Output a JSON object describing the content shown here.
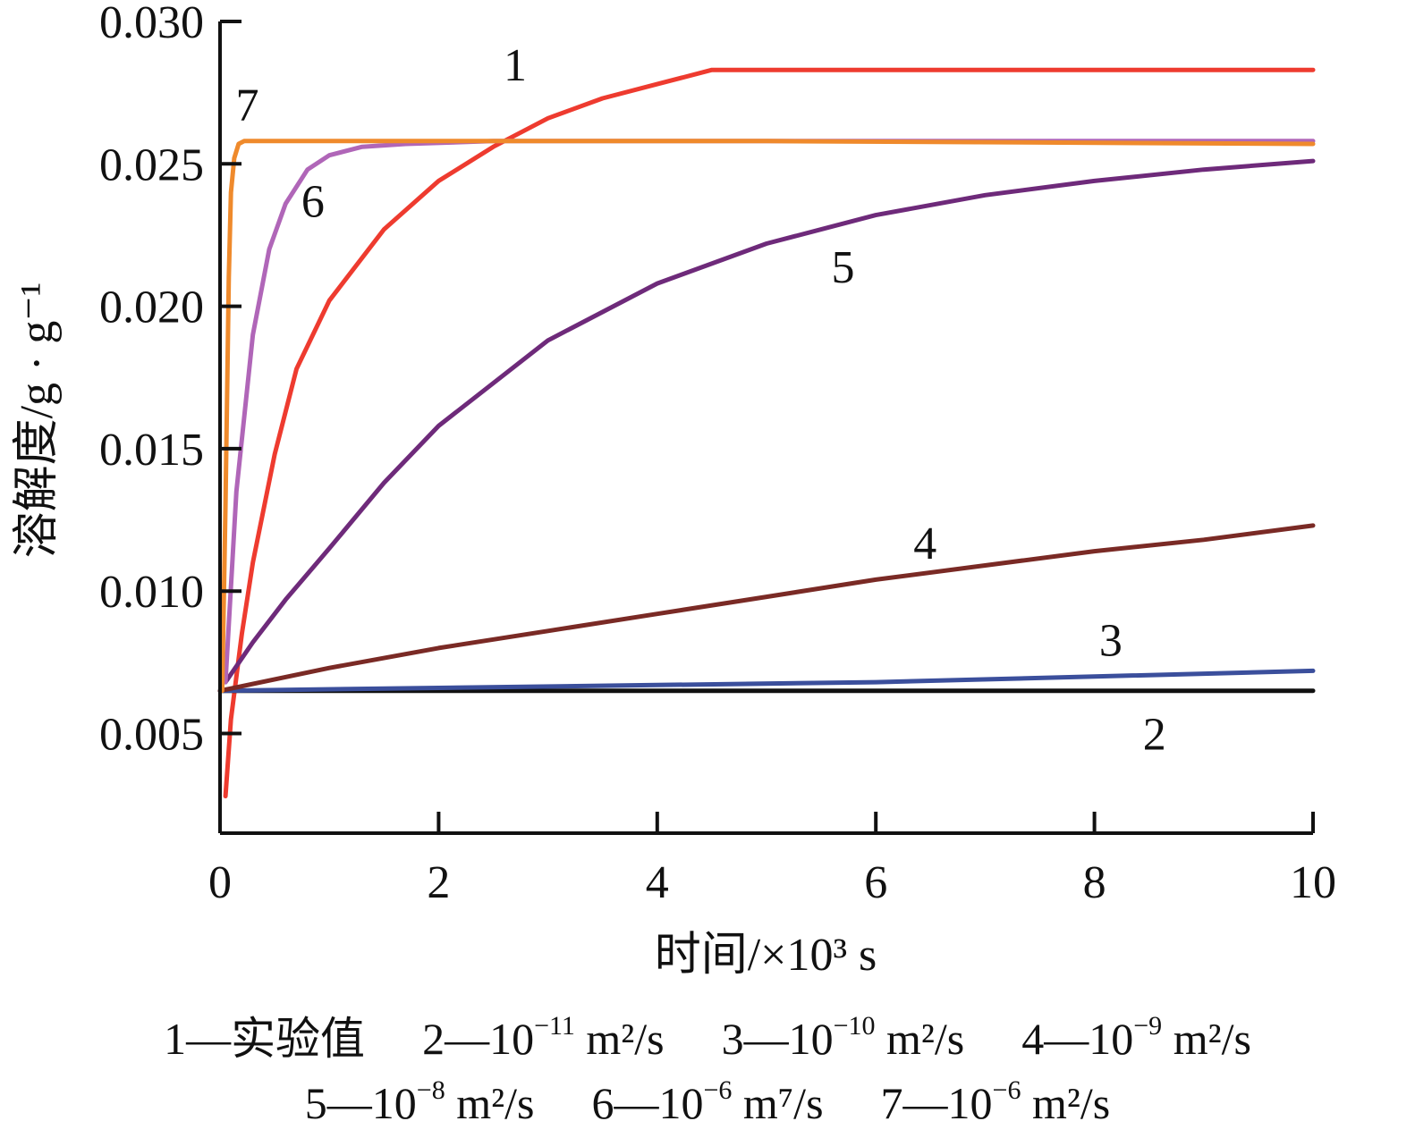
{
  "chart_data": {
    "type": "line",
    "xlabel": "时间/×10³ s",
    "ylabel": "溶解度/g · g⁻¹",
    "xlim": [
      0,
      10
    ],
    "ylim": [
      0.0015,
      0.03
    ],
    "xticks": [
      "0",
      "2",
      "4",
      "6",
      "8",
      "10"
    ],
    "yticks": [
      "0.005",
      "0.010",
      "0.015",
      "0.020",
      "0.025",
      "0.030"
    ],
    "grid": false,
    "legend_position": "bottom",
    "series": [
      {
        "label": "1",
        "color": "#ee3b2f",
        "x": [
          0.05,
          0.1,
          0.2,
          0.3,
          0.5,
          0.7,
          1.0,
          1.5,
          2.0,
          2.5,
          3.0,
          3.5,
          4.0,
          4.5,
          6.0,
          8.0,
          10.0
        ],
        "y": [
          0.0028,
          0.0055,
          0.0085,
          0.011,
          0.0148,
          0.0178,
          0.0202,
          0.0227,
          0.0244,
          0.0256,
          0.0266,
          0.0273,
          0.0278,
          0.0283,
          0.0283,
          0.0283,
          0.0283
        ]
      },
      {
        "label": "2",
        "color": "#111111",
        "x": [
          0,
          2,
          4,
          6,
          8,
          10
        ],
        "y": [
          0.0065,
          0.0065,
          0.0065,
          0.0065,
          0.0065,
          0.0065
        ]
      },
      {
        "label": "3",
        "color": "#3b4f9c",
        "x": [
          0,
          2,
          4,
          6,
          8,
          10
        ],
        "y": [
          0.0065,
          0.0066,
          0.0067,
          0.0068,
          0.007,
          0.0072
        ]
      },
      {
        "label": "4",
        "color": "#7a2a25",
        "x": [
          0,
          1,
          2,
          3,
          4,
          5,
          6,
          7,
          8,
          9,
          10
        ],
        "y": [
          0.0065,
          0.0073,
          0.008,
          0.0086,
          0.0092,
          0.0098,
          0.0104,
          0.0109,
          0.0114,
          0.0118,
          0.0123
        ]
      },
      {
        "label": "5",
        "color": "#6e2a7a",
        "x": [
          0.05,
          0.3,
          0.6,
          1.0,
          1.5,
          2.0,
          3.0,
          4.0,
          5.0,
          6.0,
          7.0,
          8.0,
          9.0,
          10.0
        ],
        "y": [
          0.0068,
          0.0082,
          0.0097,
          0.0115,
          0.0138,
          0.0158,
          0.0188,
          0.0208,
          0.0222,
          0.0232,
          0.0239,
          0.0244,
          0.0248,
          0.0251
        ]
      },
      {
        "label": "6",
        "color": "#b066b8",
        "x": [
          0.05,
          0.15,
          0.3,
          0.45,
          0.6,
          0.8,
          1.0,
          1.3,
          1.7,
          2.5,
          5.0,
          10.0
        ],
        "y": [
          0.0068,
          0.0135,
          0.019,
          0.022,
          0.0236,
          0.0248,
          0.0253,
          0.0256,
          0.0257,
          0.0258,
          0.0258,
          0.0258
        ]
      },
      {
        "label": "7",
        "color": "#ef8a2c",
        "x": [
          0.02,
          0.05,
          0.08,
          0.1,
          0.13,
          0.17,
          0.22,
          1.0,
          5.0,
          10.0
        ],
        "y": [
          0.0065,
          0.013,
          0.021,
          0.024,
          0.0252,
          0.0257,
          0.0258,
          0.0258,
          0.0258,
          0.0257
        ]
      }
    ],
    "curve_labels": [
      {
        "text": "1",
        "series": "1",
        "x": 2.7,
        "y": 0.0285
      },
      {
        "text": "2",
        "series": "2",
        "x": 8.55,
        "y": 0.005
      },
      {
        "text": "3",
        "series": "3",
        "x": 8.15,
        "y": 0.0083
      },
      {
        "text": "4",
        "series": "4",
        "x": 6.45,
        "y": 0.0117
      },
      {
        "text": "5",
        "series": "5",
        "x": 5.7,
        "y": 0.0214
      },
      {
        "text": "6",
        "series": "6",
        "x": 0.85,
        "y": 0.0237
      },
      {
        "text": "7",
        "series": "7",
        "x": 0.25,
        "y": 0.0271
      }
    ],
    "legend": [
      {
        "prefix": "1—实验值",
        "base": "",
        "exp": "",
        "unit": ""
      },
      {
        "prefix": "2—",
        "base": "10",
        "exp": "−11",
        "unit": " m²/s"
      },
      {
        "prefix": "3—",
        "base": "10",
        "exp": "−10",
        "unit": " m²/s"
      },
      {
        "prefix": "4—",
        "base": "10",
        "exp": "−9",
        "unit": " m²/s"
      },
      {
        "prefix": "5—",
        "base": "10",
        "exp": "−8",
        "unit": " m²/s"
      },
      {
        "prefix": "6—",
        "base": "10",
        "exp": "−6",
        "unit": " m⁷/s"
      },
      {
        "prefix": "7—",
        "base": "10",
        "exp": "−6",
        "unit": " m²/s"
      }
    ]
  }
}
